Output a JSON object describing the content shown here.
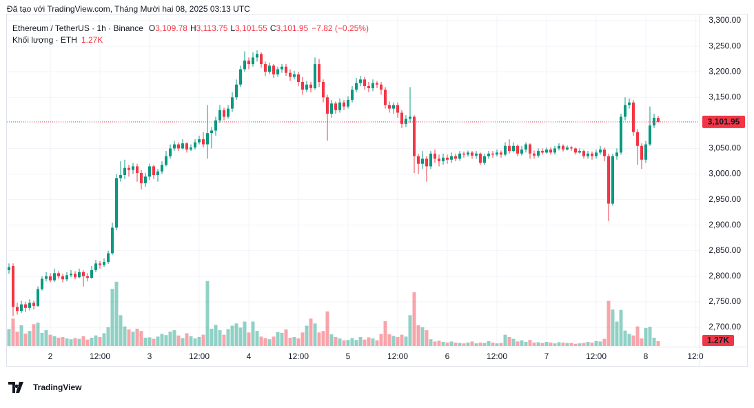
{
  "chart_data": {
    "type": "candlestick",
    "watermark": "Đã tạo với TradingView.com, Tháng Mười hai 08, 2025 03:13 UTC",
    "symbol": "Ethereum / TetherUS · 1h · Binance",
    "legend": [
      {
        "key": "O",
        "value": "3,109.78"
      },
      {
        "key": "H",
        "value": "3,113.75"
      },
      {
        "key": "L",
        "value": "3,101.55"
      },
      {
        "key": "C",
        "value": "3,101.95"
      }
    ],
    "change": "−7.82 (−0.25%)",
    "volume_title": "Khối lượng · ETH",
    "volume_label": "1.27K",
    "price_label": "3,101.95",
    "brand": "TradingView",
    "up_color": "#089981",
    "down_color": "#f23645",
    "grid": true,
    "xlim": [
      -0.5,
      167
    ],
    "xticks": [
      {
        "value": 10,
        "label": "2"
      },
      {
        "value": 22,
        "label": "12:00"
      },
      {
        "value": 34,
        "label": "3"
      },
      {
        "value": 46,
        "label": "12:00"
      },
      {
        "value": 58,
        "label": "4"
      },
      {
        "value": 70,
        "label": "12:00"
      },
      {
        "value": 82,
        "label": "5"
      },
      {
        "value": 94,
        "label": "12:00"
      },
      {
        "value": 106,
        "label": "6"
      },
      {
        "value": 118,
        "label": "12:00"
      },
      {
        "value": 130,
        "label": "7"
      },
      {
        "value": 142,
        "label": "12:00"
      },
      {
        "value": 154,
        "label": "8"
      },
      {
        "value": 166,
        "label": "12:0"
      }
    ],
    "ylim": [
      2663.6,
      3313.5
    ],
    "yticks": [
      {
        "value": 2700,
        "label": "2,700.00"
      },
      {
        "value": 2750,
        "label": "2,750.00"
      },
      {
        "value": 2800,
        "label": "2,800.00"
      },
      {
        "value": 2850,
        "label": "2,850.00"
      },
      {
        "value": 2900,
        "label": "2,900.00"
      },
      {
        "value": 2950,
        "label": "2,950.00"
      },
      {
        "value": 3000,
        "label": "3,000.00"
      },
      {
        "value": 3050,
        "label": "3,050.00"
      },
      {
        "value": 3100,
        "label": "3,100.00"
      },
      {
        "value": 3150,
        "label": "3,150.00"
      },
      {
        "value": 3200,
        "label": "3,200.00"
      },
      {
        "value": 3250,
        "label": "3,250.00"
      },
      {
        "value": 3300,
        "label": "3,300.00"
      }
    ],
    "vlim": [
      0,
      20000
    ],
    "open": [
      2812,
      2820,
      2740,
      2732,
      2745,
      2738,
      2748,
      2742,
      2775,
      2795,
      2800,
      2792,
      2806,
      2800,
      2794,
      2802,
      2805,
      2798,
      2808,
      2800,
      2797,
      2812,
      2825,
      2822,
      2828,
      2845,
      2895,
      2992,
      2998,
      3012,
      3008,
      3015,
      3002,
      2982,
      2995,
      3015,
      2998,
      3005,
      3018,
      3035,
      3050,
      3058,
      3050,
      3060,
      3048,
      3052,
      3062,
      3068,
      3058,
      3080,
      3085,
      3105,
      3125,
      3112,
      3128,
      3150,
      3175,
      3205,
      3222,
      3215,
      3228,
      3235,
      3215,
      3200,
      3212,
      3195,
      3205,
      3210,
      3198,
      3190,
      3195,
      3180,
      3165,
      3175,
      3168,
      3215,
      3180,
      3150,
      3118,
      3138,
      3125,
      3140,
      3132,
      3145,
      3165,
      3178,
      3185,
      3172,
      3168,
      3178,
      3175,
      3165,
      3135,
      3128,
      3135,
      3120,
      3098,
      3108,
      3112,
      3035,
      3020,
      3030,
      3015,
      3040,
      3030,
      3025,
      3032,
      3028,
      3035,
      3030,
      3040,
      3038,
      3042,
      3036,
      3040,
      3022,
      3035,
      3040,
      3038,
      3042,
      3038,
      3055,
      3045,
      3055,
      3040,
      3048,
      3058,
      3040,
      3036,
      3045,
      3042,
      3048,
      3042,
      3050,
      3055,
      3048,
      3052,
      3050,
      3042,
      3045,
      3035,
      3040,
      3035,
      3042,
      3048,
      3035,
      2942,
      3035,
      3042,
      3112,
      3135,
      3140,
      3082,
      3055,
      3028,
      3058,
      3095,
      3109.78
    ],
    "high": [
      2825,
      2825,
      2748,
      2752,
      2750,
      2755,
      2752,
      2780,
      2800,
      2808,
      2806,
      2815,
      2810,
      2805,
      2808,
      2812,
      2810,
      2815,
      2812,
      2806,
      2820,
      2832,
      2830,
      2835,
      2850,
      2905,
      3000,
      3025,
      3028,
      3018,
      3022,
      3020,
      3008,
      3002,
      3020,
      3018,
      3010,
      3025,
      3045,
      3058,
      3065,
      3062,
      3068,
      3062,
      3058,
      3068,
      3075,
      3082,
      3135,
      3092,
      3112,
      3135,
      3130,
      3135,
      3160,
      3185,
      3212,
      3240,
      3228,
      3238,
      3242,
      3238,
      3220,
      3218,
      3215,
      3210,
      3215,
      3215,
      3205,
      3202,
      3200,
      3190,
      3182,
      3180,
      3228,
      3225,
      3185,
      3155,
      3145,
      3142,
      3148,
      3145,
      3152,
      3172,
      3188,
      3192,
      3190,
      3180,
      3185,
      3182,
      3180,
      3170,
      3142,
      3140,
      3140,
      3125,
      3115,
      3170,
      3115,
      3040,
      3045,
      3035,
      3045,
      3048,
      3038,
      3040,
      3038,
      3042,
      3040,
      3045,
      3044,
      3046,
      3045,
      3045,
      3042,
      3040,
      3045,
      3045,
      3048,
      3046,
      3062,
      3068,
      3062,
      3058,
      3055,
      3062,
      3060,
      3046,
      3050,
      3050,
      3052,
      3052,
      3055,
      3060,
      3058,
      3056,
      3055,
      3052,
      3050,
      3048,
      3045,
      3044,
      3048,
      3055,
      3052,
      3040,
      3040,
      3050,
      3118,
      3150,
      3148,
      3145,
      3088,
      3060,
      3065,
      3132,
      3118,
      3113.75
    ],
    "low": [
      2805,
      2722,
      2725,
      2728,
      2730,
      2733,
      2735,
      2740,
      2772,
      2790,
      2788,
      2789,
      2795,
      2788,
      2790,
      2798,
      2794,
      2796,
      2780,
      2790,
      2795,
      2808,
      2815,
      2818,
      2824,
      2842,
      2890,
      2985,
      2990,
      2995,
      3000,
      2985,
      2970,
      2975,
      2988,
      2990,
      2985,
      3000,
      3015,
      3030,
      3045,
      3045,
      3048,
      3042,
      3045,
      3048,
      3058,
      3052,
      3030,
      3050,
      3075,
      3100,
      3105,
      3108,
      3122,
      3145,
      3170,
      3200,
      3205,
      3210,
      3220,
      3208,
      3192,
      3195,
      3188,
      3190,
      3198,
      3192,
      3182,
      3185,
      3172,
      3155,
      3160,
      3160,
      3165,
      3170,
      3140,
      3065,
      3110,
      3118,
      3120,
      3125,
      3128,
      3140,
      3160,
      3172,
      3165,
      3160,
      3162,
      3168,
      3155,
      3128,
      3120,
      3118,
      3110,
      3090,
      3092,
      3100,
      3002,
      3000,
      3010,
      2985,
      3010,
      3022,
      3015,
      3018,
      3020,
      3022,
      3025,
      3026,
      3032,
      3034,
      3030,
      3030,
      3018,
      3018,
      3030,
      3032,
      3034,
      3032,
      3035,
      3040,
      3042,
      3035,
      3036,
      3042,
      3030,
      3030,
      3032,
      3038,
      3040,
      3038,
      3038,
      3046,
      3044,
      3046,
      3045,
      3038,
      3040,
      3030,
      3030,
      3028,
      3030,
      3038,
      3025,
      2908,
      2938,
      3028,
      3038,
      3105,
      3128,
      3075,
      3018,
      3010,
      3022,
      3055,
      3090,
      3101.55
    ],
    "close": [
      2818,
      2740,
      2732,
      2745,
      2738,
      2748,
      2742,
      2775,
      2795,
      2800,
      2792,
      2806,
      2800,
      2794,
      2802,
      2805,
      2798,
      2808,
      2800,
      2797,
      2812,
      2825,
      2822,
      2828,
      2845,
      2895,
      2992,
      2998,
      3012,
      3008,
      3015,
      3002,
      2982,
      2995,
      3015,
      2998,
      3005,
      3018,
      3035,
      3050,
      3058,
      3050,
      3060,
      3048,
      3052,
      3062,
      3068,
      3058,
      3080,
      3085,
      3105,
      3125,
      3112,
      3128,
      3150,
      3175,
      3205,
      3222,
      3215,
      3228,
      3235,
      3215,
      3200,
      3212,
      3195,
      3205,
      3210,
      3198,
      3190,
      3195,
      3180,
      3165,
      3175,
      3168,
      3215,
      3180,
      3150,
      3118,
      3138,
      3125,
      3140,
      3132,
      3145,
      3165,
      3178,
      3185,
      3172,
      3168,
      3178,
      3175,
      3165,
      3135,
      3128,
      3135,
      3120,
      3098,
      3108,
      3112,
      3035,
      3020,
      3030,
      3015,
      3040,
      3030,
      3025,
      3032,
      3028,
      3035,
      3030,
      3040,
      3038,
      3042,
      3036,
      3040,
      3022,
      3035,
      3040,
      3038,
      3042,
      3038,
      3055,
      3045,
      3055,
      3040,
      3048,
      3058,
      3040,
      3036,
      3045,
      3042,
      3048,
      3042,
      3050,
      3055,
      3048,
      3052,
      3050,
      3042,
      3045,
      3035,
      3040,
      3035,
      3042,
      3048,
      3035,
      2942,
      3035,
      3042,
      3112,
      3135,
      3140,
      3082,
      3055,
      3028,
      3058,
      3095,
      3110,
      3101.95
    ],
    "volume": [
      4500,
      7300,
      3800,
      5500,
      3300,
      4000,
      5800,
      6200,
      3500,
      4200,
      3000,
      2600,
      2200,
      2400,
      2000,
      1800,
      2100,
      1900,
      2600,
      1700,
      2200,
      2800,
      2400,
      3400,
      5000,
      15200,
      17100,
      8200,
      5200,
      4400,
      3800,
      4600,
      4000,
      2200,
      2300,
      1900,
      2500,
      3200,
      2900,
      3800,
      4200,
      2800,
      2100,
      3400,
      2600,
      2000,
      2400,
      3000,
      17300,
      4600,
      5600,
      4200,
      3000,
      4500,
      5400,
      6000,
      4900,
      6500,
      3600,
      6500,
      4000,
      2500,
      2100,
      1800,
      2500,
      3700,
      3500,
      4400,
      2200,
      2400,
      2000,
      3600,
      5400,
      7300,
      6000,
      3600,
      4000,
      9200,
      3100,
      2400,
      2000,
      1500,
      1600,
      2100,
      1600,
      2400,
      1700,
      2300,
      2000,
      1500,
      3200,
      6600,
      3100,
      2700,
      2400,
      3000,
      2500,
      8200,
      14300,
      5500,
      5000,
      4200,
      1800,
      1200,
      1400,
      1100,
      900,
      1200,
      900,
      800,
      700,
      900,
      1200,
      700,
      900,
      800,
      1300,
      900,
      700,
      800,
      3000,
      2400,
      1900,
      1200,
      1500,
      1100,
      1600,
      900,
      1000,
      800,
      1100,
      900,
      700,
      1000,
      900,
      800,
      800,
      600,
      700,
      800,
      1100,
      900,
      1300,
      1200,
      1900,
      12000,
      9700,
      6500,
      9600,
      4100,
      3200,
      2800,
      5200,
      2000,
      4800,
      5100,
      2200,
      1270
    ]
  }
}
